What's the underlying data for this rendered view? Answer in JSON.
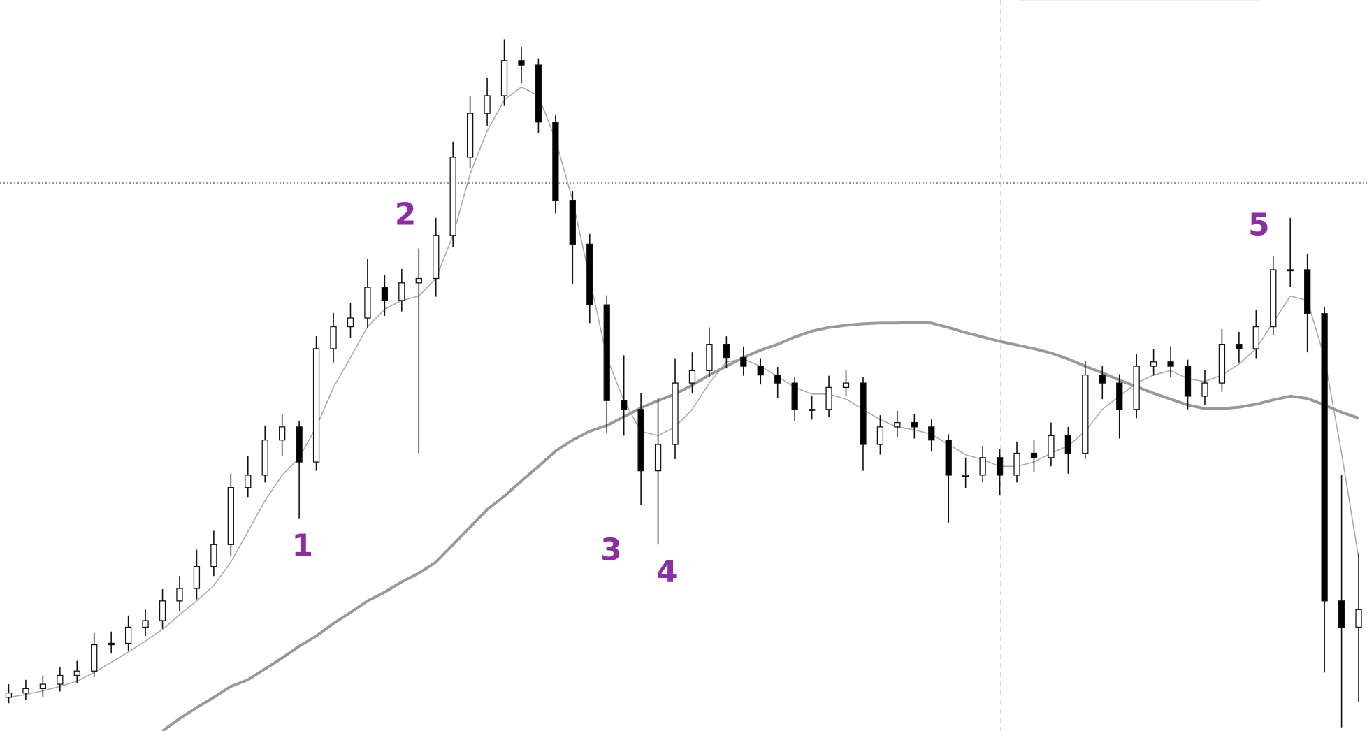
{
  "chart_data": {
    "type": "candlestick",
    "ylim": [
      0,
      100
    ],
    "up_color": "#ffffff",
    "down_color": "#000000",
    "edge_color": "#111111",
    "open": [
      4.6,
      5.2,
      5.8,
      6.4,
      7.6,
      8.2,
      11.8,
      12.0,
      14.2,
      15.1,
      17.8,
      19.5,
      22.5,
      25.5,
      33.3,
      35.0,
      39.8,
      41.6,
      36.8,
      52.3,
      55.3,
      56.5,
      60.7,
      58.9,
      61.3,
      61.9,
      67.8,
      78.5,
      84.5,
      86.9,
      91.7,
      91.1,
      83.3,
      72.6,
      66.6,
      58.3,
      45.2,
      44.0,
      35.6,
      39.2,
      47.6,
      49.3,
      52.9,
      51.1,
      49.9,
      48.7,
      47.6,
      44.0,
      44.0,
      47.0,
      47.6,
      39.2,
      41.6,
      42.2,
      41.6,
      39.8,
      35.0,
      35.0,
      37.4,
      35.0,
      38.0,
      37.4,
      40.4,
      38.0,
      48.7,
      47.6,
      44.0,
      49.9,
      50.5,
      49.9,
      45.8,
      47.6,
      52.9,
      52.3,
      55.3,
      63.1,
      63.1,
      57.1,
      17.8,
      14.2
    ],
    "high": [
      6.4,
      7.0,
      7.6,
      8.8,
      9.6,
      13.4,
      13.6,
      15.8,
      16.6,
      19.4,
      21.2,
      24.8,
      27.4,
      35.2,
      37.6,
      41.8,
      43.4,
      42.4,
      54.0,
      57.2,
      58.6,
      64.6,
      62.4,
      63.2,
      66.0,
      70.2,
      80.6,
      86.8,
      89.4,
      94.6,
      93.6,
      92.0,
      84.2,
      73.8,
      68.0,
      59.6,
      51.4,
      46.2,
      45.6,
      51.0,
      51.8,
      55.2,
      54.0,
      52.6,
      51.0,
      49.8,
      48.4,
      45.8,
      48.6,
      49.4,
      48.4,
      43.2,
      43.8,
      43.4,
      42.6,
      40.6,
      37.4,
      39.0,
      38.6,
      39.6,
      39.8,
      42.2,
      41.6,
      50.6,
      50.0,
      48.8,
      51.6,
      52.2,
      52.6,
      50.8,
      49.4,
      55.0,
      54.6,
      57.6,
      65.0,
      70.2,
      65.2,
      58.0,
      35.0,
      24.2
    ],
    "low": [
      3.8,
      4.2,
      4.6,
      5.4,
      6.6,
      7.4,
      10.6,
      11.0,
      13.0,
      14.0,
      16.4,
      18.0,
      21.2,
      24.0,
      32.0,
      34.0,
      37.6,
      29.1,
      35.6,
      50.4,
      53.8,
      55.2,
      56.8,
      57.4,
      38.0,
      59.4,
      66.2,
      77.0,
      82.8,
      85.6,
      88.6,
      81.8,
      70.8,
      61.2,
      55.8,
      40.8,
      40.4,
      30.9,
      25.5,
      37.2,
      46.2,
      48.4,
      49.6,
      48.6,
      47.4,
      45.6,
      42.4,
      42.6,
      43.0,
      45.8,
      35.6,
      37.8,
      40.2,
      40.0,
      38.2,
      28.5,
      33.2,
      34.0,
      32.2,
      34.0,
      35.4,
      36.2,
      35.2,
      37.2,
      45.4,
      40.0,
      42.8,
      48.6,
      48.4,
      44.0,
      44.6,
      46.4,
      50.4,
      51.0,
      54.2,
      60.8,
      51.8,
      8.0,
      0.5,
      4.0
    ],
    "close": [
      5.2,
      5.8,
      6.4,
      7.6,
      8.2,
      11.8,
      12.0,
      14.2,
      15.1,
      17.8,
      19.5,
      22.5,
      25.5,
      33.3,
      35.0,
      39.8,
      41.6,
      36.8,
      52.3,
      55.3,
      56.5,
      60.7,
      58.9,
      61.3,
      61.9,
      67.8,
      78.5,
      84.5,
      86.9,
      91.7,
      91.1,
      83.3,
      72.6,
      66.6,
      58.3,
      45.2,
      44.0,
      35.6,
      39.2,
      47.6,
      49.3,
      52.9,
      51.1,
      49.9,
      48.7,
      47.6,
      44.0,
      44.0,
      47.0,
      47.6,
      39.2,
      41.6,
      42.2,
      41.6,
      39.8,
      35.0,
      35.0,
      37.4,
      35.0,
      38.0,
      37.4,
      40.4,
      38.0,
      48.7,
      47.6,
      44.0,
      49.9,
      50.5,
      49.9,
      45.8,
      47.6,
      52.9,
      52.3,
      55.3,
      63.1,
      63.1,
      57.1,
      17.8,
      14.2,
      16.6
    ],
    "moving_averages": [
      {
        "color": "#aaaaaa",
        "width": 1.6,
        "values": [
          4.6,
          5.0,
          5.5,
          6.1,
          6.8,
          8.0,
          9.4,
          10.8,
          12.3,
          13.9,
          15.9,
          17.8,
          19.9,
          23.1,
          27.3,
          31.5,
          35.0,
          37.4,
          41.6,
          47.0,
          51.1,
          55.3,
          57.7,
          58.9,
          59.5,
          61.9,
          67.8,
          76.2,
          82.1,
          86.3,
          88.1,
          86.9,
          80.9,
          72.6,
          61.9,
          51.1,
          45.2,
          41.0,
          40.4,
          41.6,
          44.0,
          47.6,
          50.5,
          50.9,
          49.9,
          48.5,
          47.0,
          46.1,
          46.1,
          45.4,
          44.0,
          42.6,
          41.6,
          41.2,
          40.6,
          39.2,
          37.8,
          37.1,
          36.2,
          36.2,
          36.8,
          38.0,
          39.0,
          41.0,
          44.0,
          45.8,
          47.6,
          48.7,
          49.3,
          48.2,
          47.8,
          48.7,
          50.2,
          52.3,
          55.9,
          59.5,
          58.9,
          51.1,
          38.0,
          23.7
        ]
      },
      {
        "color": "#999999",
        "width": 4,
        "values": [
          null,
          null,
          null,
          null,
          null,
          null,
          null,
          null,
          null,
          0.0,
          1.7,
          3.2,
          4.6,
          6.1,
          7.0,
          8.5,
          10.0,
          11.6,
          13.0,
          14.7,
          16.2,
          17.8,
          19.0,
          20.4,
          21.6,
          23.1,
          25.5,
          27.9,
          30.3,
          32.1,
          34.2,
          36.2,
          38.3,
          39.8,
          41.0,
          41.8,
          43.0,
          44.2,
          45.2,
          46.1,
          47.3,
          48.7,
          49.9,
          51.1,
          52.1,
          52.9,
          53.9,
          54.7,
          55.2,
          55.5,
          55.7,
          55.8,
          55.8,
          55.9,
          55.8,
          55.2,
          54.5,
          53.9,
          53.3,
          52.8,
          52.3,
          51.7,
          50.9,
          49.9,
          49.0,
          48.0,
          47.1,
          46.2,
          45.4,
          44.6,
          44.1,
          44.1,
          44.3,
          44.7,
          45.3,
          45.8,
          45.5,
          44.6,
          43.6,
          42.8
        ]
      }
    ],
    "annotations": [
      "1",
      "2",
      "3",
      "4",
      "5"
    ],
    "annotation_color": "#8b2ea3"
  }
}
